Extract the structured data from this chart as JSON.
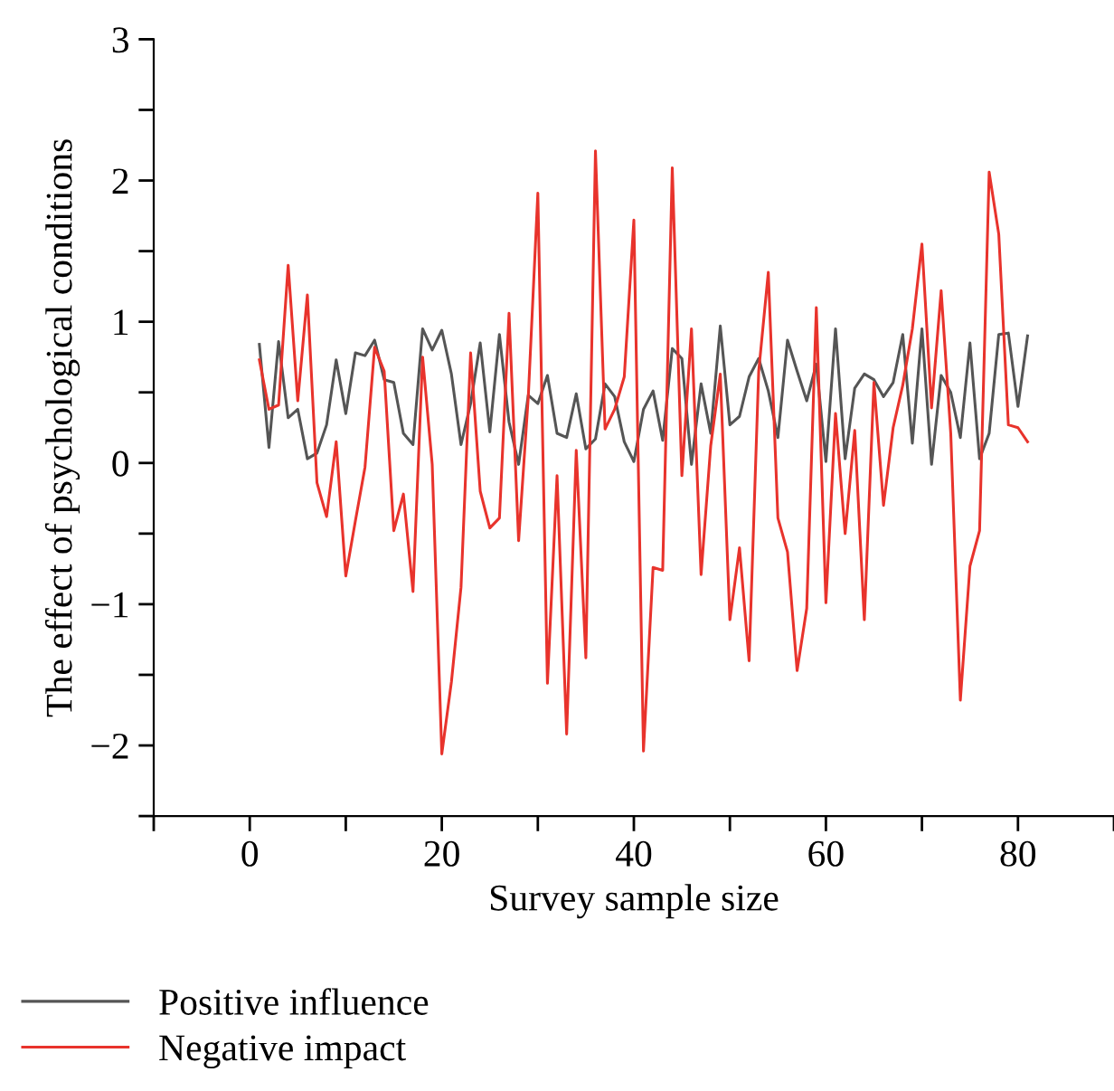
{
  "chart_data": {
    "type": "line",
    "xlabel": "Survey sample size",
    "ylabel": "The effect of psychological conditions",
    "x": [
      1,
      2,
      3,
      4,
      5,
      6,
      7,
      8,
      9,
      10,
      11,
      12,
      13,
      14,
      15,
      16,
      17,
      18,
      19,
      20,
      21,
      22,
      23,
      24,
      25,
      26,
      27,
      28,
      29,
      30,
      31,
      32,
      33,
      34,
      35,
      36,
      37,
      38,
      39,
      40,
      41,
      42,
      43,
      44,
      45,
      46,
      47,
      48,
      49,
      50,
      51,
      52,
      53,
      54,
      55,
      56,
      57,
      58,
      59,
      60,
      61,
      62,
      63,
      64,
      65,
      66,
      67,
      68,
      69,
      70,
      71,
      72,
      73,
      74,
      75,
      76,
      77,
      78,
      79,
      80,
      81
    ],
    "series": [
      {
        "name": "Positive influence",
        "color": "#555555",
        "values": [
          0.84,
          0.11,
          0.86,
          0.32,
          0.38,
          0.03,
          0.07,
          0.27,
          0.73,
          0.35,
          0.78,
          0.76,
          0.87,
          0.59,
          0.57,
          0.21,
          0.13,
          0.95,
          0.8,
          0.94,
          0.63,
          0.13,
          0.42,
          0.85,
          0.22,
          0.91,
          0.29,
          -0.01,
          0.48,
          0.42,
          0.62,
          0.21,
          0.18,
          0.49,
          0.1,
          0.17,
          0.56,
          0.47,
          0.15,
          0.01,
          0.38,
          0.51,
          0.16,
          0.81,
          0.74,
          -0.01,
          0.56,
          0.21,
          0.97,
          0.27,
          0.33,
          0.61,
          0.74,
          0.51,
          0.18,
          0.87,
          0.65,
          0.44,
          0.7,
          0.01,
          0.95,
          0.03,
          0.53,
          0.63,
          0.59,
          0.47,
          0.57,
          0.91,
          0.14,
          0.95,
          -0.01,
          0.62,
          0.5,
          0.18,
          0.85,
          0.03,
          0.21,
          0.91,
          0.92,
          0.4,
          0.9
        ]
      },
      {
        "name": "Negative impact",
        "color": "#e8332c",
        "values": [
          0.73,
          0.38,
          0.41,
          1.4,
          0.44,
          1.19,
          -0.14,
          -0.38,
          0.15,
          -0.8,
          -0.41,
          -0.03,
          0.82,
          0.65,
          -0.48,
          -0.22,
          -0.91,
          0.75,
          -0.01,
          -2.06,
          -1.55,
          -0.88,
          0.78,
          -0.2,
          -0.46,
          -0.39,
          1.06,
          -0.55,
          0.46,
          1.91,
          -1.56,
          -0.09,
          -1.92,
          0.09,
          -1.38,
          2.21,
          0.24,
          0.38,
          0.61,
          1.72,
          -2.04,
          -0.74,
          -0.76,
          2.09,
          -0.09,
          0.95,
          -0.79,
          0.12,
          0.63,
          -1.11,
          -0.6,
          -1.4,
          0.65,
          1.35,
          -0.39,
          -0.63,
          -1.47,
          -1.03,
          1.1,
          -0.99,
          0.35,
          -0.5,
          0.23,
          -1.11,
          0.57,
          -0.3,
          0.25,
          0.55,
          0.95,
          1.55,
          0.39,
          1.22,
          0.21,
          -1.68,
          -0.73,
          -0.48,
          2.06,
          1.62,
          0.27,
          0.25,
          0.15
        ]
      }
    ],
    "xlim": [
      -10,
      90
    ],
    "xticks": [
      {
        "value": -10,
        "label": null
      },
      0,
      {
        "value": 10,
        "label": null
      },
      20,
      {
        "value": 30,
        "label": null
      },
      40,
      {
        "value": 50,
        "label": null
      },
      60,
      {
        "value": 70,
        "label": null
      },
      80,
      {
        "value": 90,
        "label": null
      }
    ],
    "ylim": [
      -2.5,
      3
    ],
    "yticks": [
      {
        "value": -2.5,
        "label": null
      },
      {
        "value": -2,
        "label": "−2"
      },
      {
        "value": -1.5,
        "label": null
      },
      {
        "value": -1,
        "label": "−1"
      },
      {
        "value": -0.5,
        "label": null
      },
      0,
      {
        "value": 0.5,
        "label": null
      },
      1,
      {
        "value": 1.5,
        "label": null
      },
      2,
      {
        "value": 2.5,
        "label": null
      },
      3
    ],
    "grid": false,
    "legend": "bottom left",
    "marker": "none",
    "line_style": "solid"
  }
}
